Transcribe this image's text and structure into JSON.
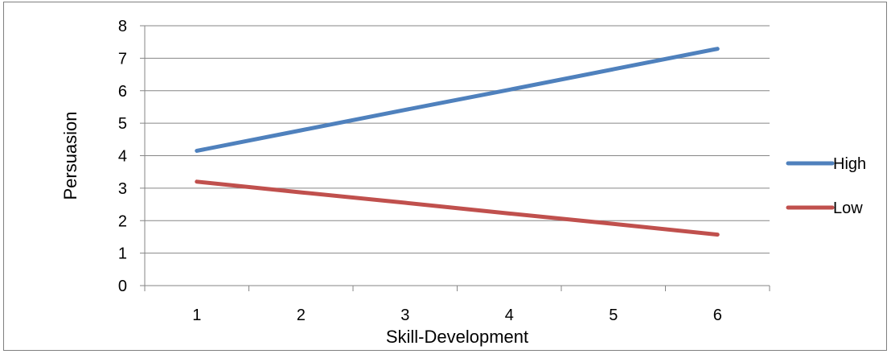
{
  "chart_data": {
    "type": "line",
    "title": "",
    "xlabel": "Skill-Development",
    "ylabel": "Persuasion",
    "categories": [
      "1",
      "2",
      "3",
      "4",
      "5",
      "6"
    ],
    "ylim": [
      0,
      8
    ],
    "yticks": [
      "0",
      "1",
      "2",
      "3",
      "4",
      "5",
      "6",
      "7",
      "8"
    ],
    "grid": "horizontal",
    "legend_position": "right",
    "series": [
      {
        "name": "High",
        "color": "#4f81bd",
        "values": [
          4.15,
          4.78,
          5.41,
          6.03,
          6.66,
          7.29
        ]
      },
      {
        "name": "Low",
        "color": "#c0504d",
        "values": [
          3.2,
          2.87,
          2.55,
          2.22,
          1.9,
          1.57
        ]
      }
    ]
  }
}
